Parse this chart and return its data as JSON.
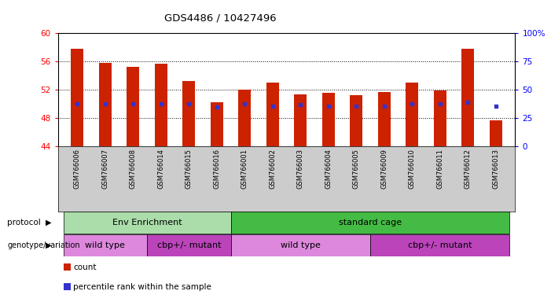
{
  "title": "GDS4486 / 10427496",
  "samples": [
    "GSM766006",
    "GSM766007",
    "GSM766008",
    "GSM766014",
    "GSM766015",
    "GSM766016",
    "GSM766001",
    "GSM766002",
    "GSM766003",
    "GSM766004",
    "GSM766005",
    "GSM766009",
    "GSM766010",
    "GSM766011",
    "GSM766012",
    "GSM766013"
  ],
  "bar_tops": [
    57.8,
    55.8,
    55.2,
    55.7,
    53.2,
    50.2,
    52.0,
    53.0,
    51.4,
    51.6,
    51.2,
    51.7,
    53.0,
    51.9,
    57.8,
    47.7
  ],
  "bar_base": 44.0,
  "blue_dot_y": [
    50.0,
    50.0,
    50.0,
    50.0,
    50.0,
    49.6,
    50.0,
    49.7,
    49.9,
    49.7,
    49.7,
    49.7,
    50.0,
    50.0,
    50.3,
    49.7
  ],
  "ylim_left": [
    44,
    60
  ],
  "ylim_right": [
    0,
    100
  ],
  "yticks_left": [
    44,
    48,
    52,
    56,
    60
  ],
  "yticks_right": [
    0,
    25,
    50,
    75,
    100
  ],
  "ytick_labels_right": [
    "0",
    "25",
    "50",
    "75",
    "100%"
  ],
  "bar_color": "#cc2200",
  "dot_color": "#3333cc",
  "protocol_groups": [
    {
      "label": "Env Enrichment",
      "start": 0,
      "end": 6,
      "color": "#aaddaa"
    },
    {
      "label": "standard cage",
      "start": 6,
      "end": 16,
      "color": "#44bb44"
    }
  ],
  "genotype_groups": [
    {
      "label": "wild type",
      "start": 0,
      "end": 3,
      "color": "#dd88dd"
    },
    {
      "label": "cbp+/- mutant",
      "start": 3,
      "end": 6,
      "color": "#bb44bb"
    },
    {
      "label": "wild type",
      "start": 6,
      "end": 11,
      "color": "#dd88dd"
    },
    {
      "label": "cbp+/- mutant",
      "start": 11,
      "end": 16,
      "color": "#bb44bb"
    }
  ],
  "legend_items": [
    {
      "label": "count",
      "color": "#cc2200"
    },
    {
      "label": "percentile rank within the sample",
      "color": "#3333cc"
    }
  ],
  "xlabels_bg": "#cccccc",
  "bar_width": 0.45
}
